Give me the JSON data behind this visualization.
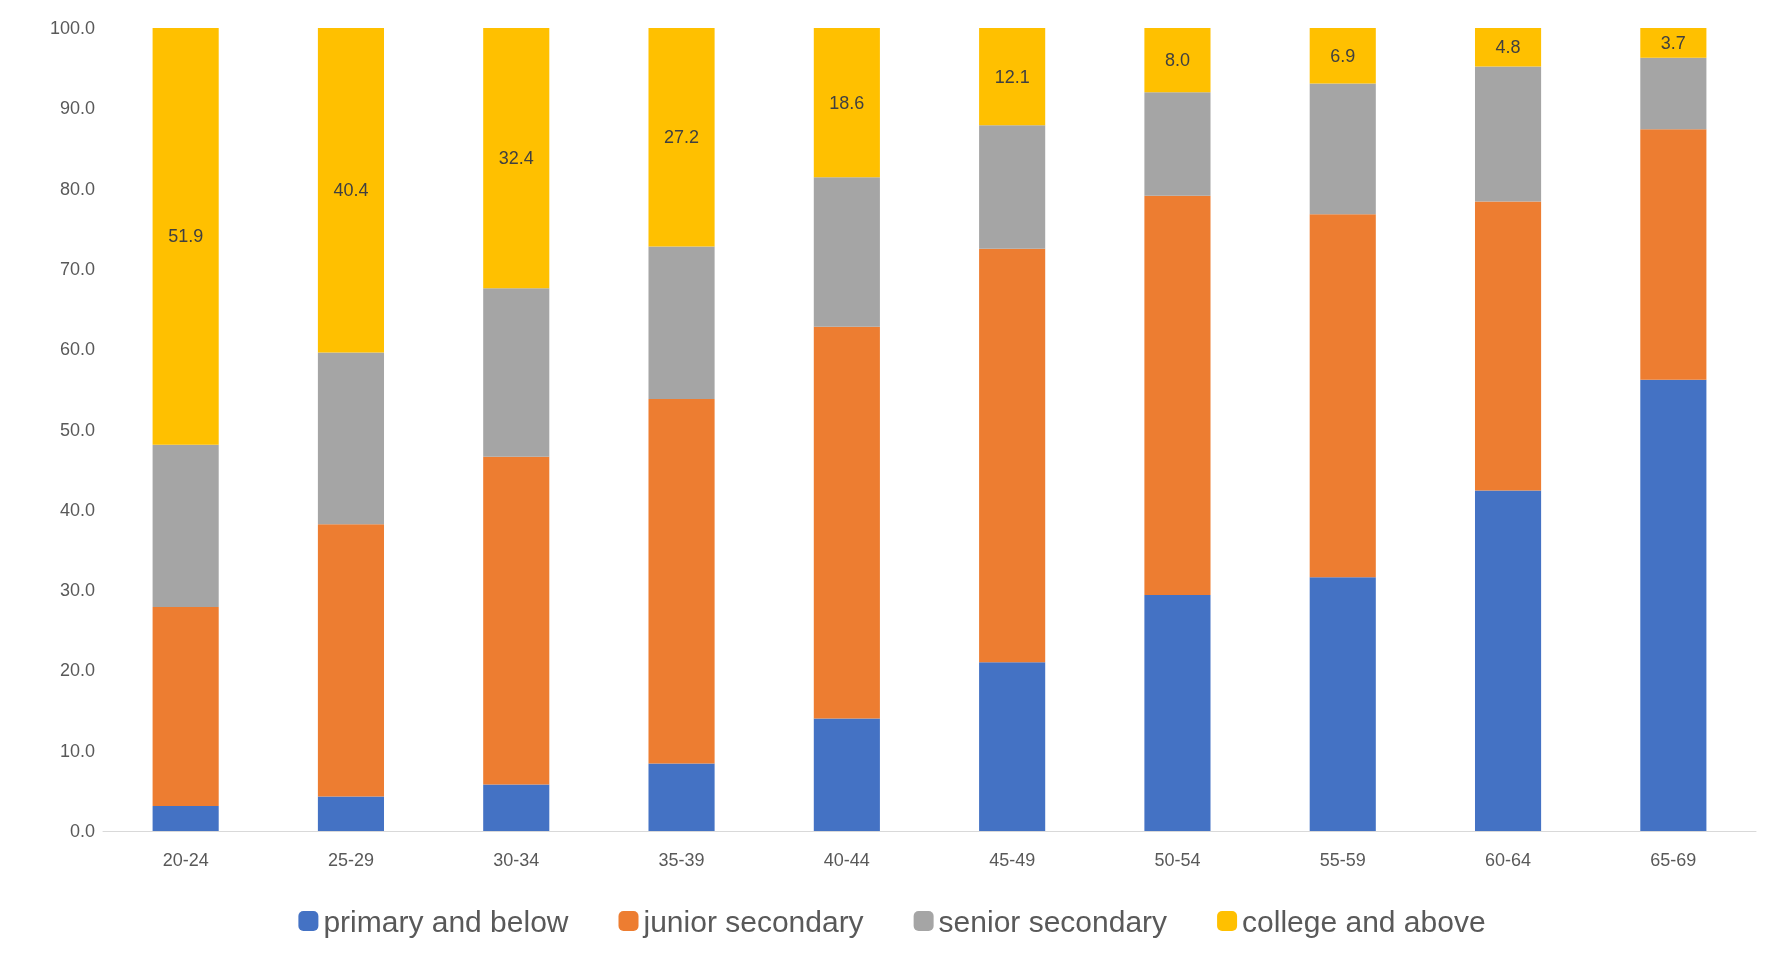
{
  "chart_data": {
    "type": "bar",
    "stacked": true,
    "categories": [
      "20-24",
      "25-29",
      "30-34",
      "35-39",
      "40-44",
      "45-49",
      "50-54",
      "55-59",
      "60-64",
      "65-69"
    ],
    "series": [
      {
        "name": "primary and below",
        "color": "#4472c4",
        "values": [
          3.1,
          4.3,
          5.8,
          8.4,
          14.0,
          21.0,
          29.4,
          31.6,
          42.4,
          56.2
        ]
      },
      {
        "name": "junior secondary",
        "color": "#ed7d31",
        "values": [
          24.8,
          33.9,
          40.8,
          45.4,
          48.8,
          51.5,
          49.7,
          45.2,
          36.0,
          31.2
        ]
      },
      {
        "name": "senior secondary",
        "color": "#a5a5a5",
        "values": [
          20.2,
          21.4,
          21.0,
          19.0,
          18.6,
          15.4,
          12.9,
          16.3,
          16.8,
          8.9
        ]
      },
      {
        "name": "college and above",
        "color": "#ffc000",
        "values": [
          51.9,
          40.4,
          32.4,
          27.2,
          18.6,
          12.1,
          8.0,
          6.9,
          4.8,
          3.7
        ],
        "value_labels": [
          "51.9",
          "40.4",
          "32.4",
          "27.2",
          "18.6",
          "12.1",
          "8.0",
          "6.9",
          "4.8",
          "3.7"
        ]
      }
    ],
    "ylim": [
      0,
      100
    ],
    "yticks": [
      {
        "value": 0,
        "label": "0.0"
      },
      {
        "value": 10,
        "label": "10.0"
      },
      {
        "value": 20,
        "label": "20.0"
      },
      {
        "value": 30,
        "label": "30.0"
      },
      {
        "value": 40,
        "label": "40.0"
      },
      {
        "value": 50,
        "label": "50.0"
      },
      {
        "value": 60,
        "label": "60.0"
      },
      {
        "value": 70,
        "label": "70.0"
      },
      {
        "value": 80,
        "label": "80.0"
      },
      {
        "value": 90,
        "label": "90.0"
      },
      {
        "value": 100,
        "label": "100.0"
      }
    ],
    "grid": false,
    "legend": "bottom"
  }
}
